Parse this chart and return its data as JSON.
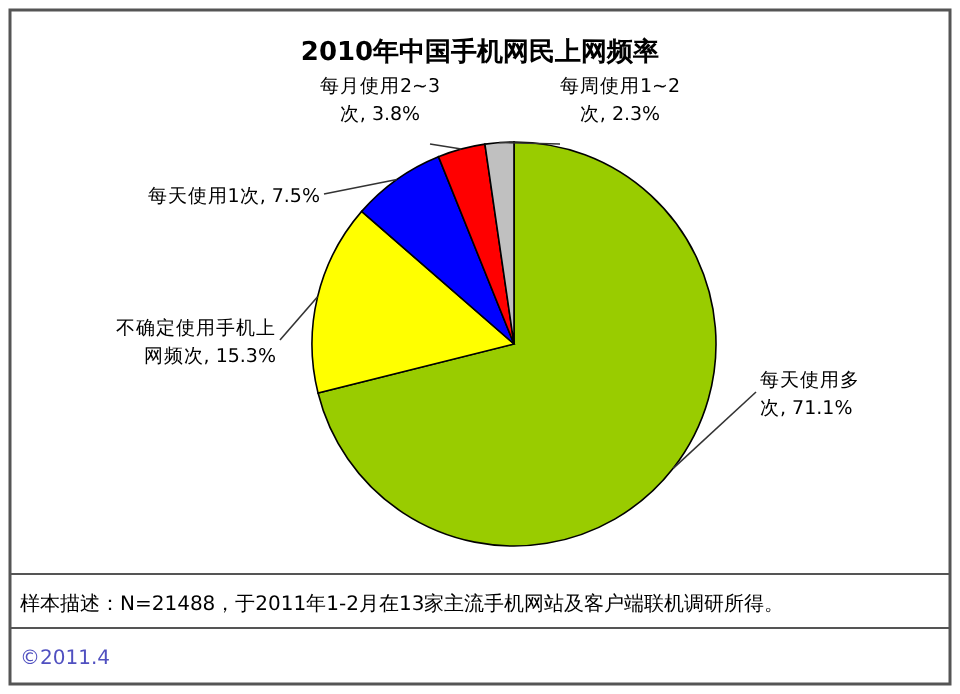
{
  "chart_data": {
    "type": "pie",
    "title": "2010年中国手机网民上网频率",
    "categories": [
      "每天使用多次",
      "不确定使用手机上网频次",
      "每天使用1次",
      "每月使用2~3次",
      "每周使用1~2次"
    ],
    "values": [
      71.1,
      15.3,
      7.5,
      3.8,
      2.3
    ],
    "value_labels": [
      "71.1%",
      "15.3%",
      "7.5%",
      "3.8%",
      "2.3%"
    ],
    "colors": [
      "#99cc00",
      "#ffff00",
      "#0000ff",
      "#ff0000",
      "#c0c0c0"
    ],
    "annotations": [
      "样本描述：N=21488，于2011年1-2月在13家主流手机网站及客户端联机调研所得。",
      "©2011.4"
    ]
  }
}
